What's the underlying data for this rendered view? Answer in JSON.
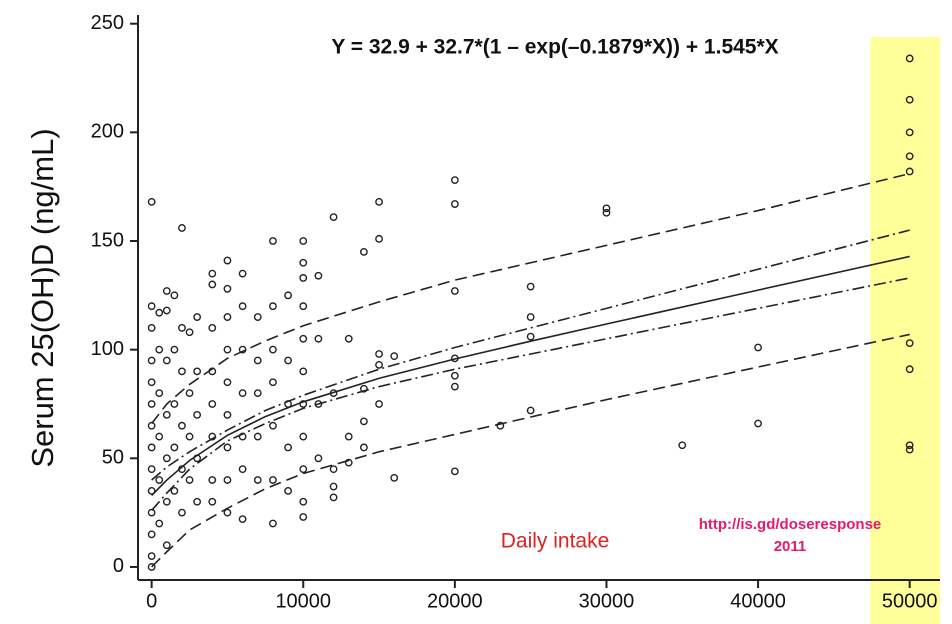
{
  "chart_data": {
    "type": "scatter",
    "y_label": "Serum 25(OH)D (ng/mL)",
    "annotation": "Y = 32.9 + 32.7*(1 – exp(–0.1879*X)) + 1.545*X",
    "x_note": "Daily intake",
    "source": "http://is.gd/doseresponse",
    "source_year": "2011",
    "xlim": [
      -900,
      52000
    ],
    "ylim": [
      -6,
      254
    ],
    "xticks": [
      0,
      10000,
      20000,
      30000,
      40000,
      50000
    ],
    "yticks": [
      0,
      50,
      100,
      150,
      200,
      250
    ],
    "grid": false,
    "color": "#222222",
    "highlight": {
      "x": [
        47400,
        52000
      ],
      "color": "#ffff99"
    },
    "x": [
      0,
      0,
      0,
      0,
      0,
      0,
      0,
      0,
      0,
      0,
      0,
      0,
      0,
      0,
      500,
      500,
      500,
      500,
      500,
      500,
      1000,
      1000,
      1000,
      1000,
      1000,
      1000,
      1000,
      1500,
      1500,
      1500,
      1500,
      1500,
      2000,
      2000,
      2000,
      2000,
      2000,
      2000,
      2500,
      2500,
      2500,
      2500,
      3000,
      3000,
      3000,
      3000,
      3000,
      4000,
      4000,
      4000,
      4000,
      4000,
      4000,
      4000,
      4000,
      5000,
      5000,
      5000,
      5000,
      5000,
      5000,
      5000,
      5000,
      5000,
      6000,
      6000,
      6000,
      6000,
      6000,
      6000,
      6000,
      7000,
      7000,
      7000,
      7000,
      7000,
      8000,
      8000,
      8000,
      8000,
      8000,
      8000,
      8000,
      9000,
      9000,
      9000,
      9000,
      9000,
      10000,
      10000,
      10000,
      10000,
      10000,
      10000,
      10000,
      10000,
      10000,
      10000,
      10000,
      11000,
      11000,
      11000,
      11000,
      12000,
      12000,
      12000,
      12000,
      12000,
      13000,
      13000,
      13000,
      14000,
      14000,
      14000,
      14000,
      15000,
      15000,
      15000,
      15000,
      15000,
      16000,
      16000,
      20000,
      20000,
      20000,
      20000,
      20000,
      20000,
      20000,
      23000,
      25000,
      25000,
      25000,
      25000,
      30000,
      30000,
      35000,
      40000,
      40000,
      50000,
      50000,
      50000,
      50000,
      50000,
      50000,
      50000,
      50000,
      50000
    ],
    "values": [
      168,
      120,
      110,
      95,
      85,
      75,
      65,
      55,
      45,
      35,
      25,
      15,
      5,
      0,
      117,
      100,
      80,
      60,
      40,
      20,
      127,
      118,
      95,
      70,
      50,
      30,
      10,
      125,
      100,
      75,
      55,
      35,
      156,
      110,
      90,
      65,
      45,
      25,
      108,
      80,
      60,
      40,
      115,
      90,
      70,
      50,
      30,
      135,
      130,
      110,
      90,
      75,
      60,
      40,
      30,
      141,
      128,
      115,
      100,
      85,
      70,
      55,
      40,
      25,
      135,
      120,
      100,
      80,
      60,
      45,
      22,
      115,
      95,
      80,
      60,
      40,
      150,
      120,
      100,
      85,
      65,
      40,
      20,
      125,
      95,
      75,
      55,
      35,
      150,
      140,
      133,
      120,
      105,
      90,
      75,
      60,
      45,
      30,
      23,
      134,
      105,
      75,
      50,
      161,
      80,
      45,
      32,
      37,
      105,
      60,
      48,
      145,
      82,
      67,
      55,
      168,
      151,
      98,
      93,
      75,
      97,
      41,
      178,
      167,
      127,
      96,
      88,
      83,
      44,
      65,
      129,
      115,
      106,
      72,
      165,
      163,
      56,
      101,
      66,
      234,
      215,
      200,
      189,
      182,
      103,
      91,
      56,
      54
    ],
    "lines": [
      {
        "style": "solid",
        "x": [
          0,
          1000,
          2500,
          5000,
          7500,
          10000,
          15000,
          20000,
          25000,
          30000,
          40000,
          50000
        ],
        "values": [
          32.9,
          40.0,
          49.0,
          60.6,
          69.2,
          76.0,
          86.8,
          95.7,
          103.9,
          111.8,
          127.4,
          142.9
        ]
      },
      {
        "style": "dashdot",
        "x": [
          0,
          1000,
          2500,
          5000,
          7500,
          10000,
          15000,
          20000,
          25000,
          30000,
          40000,
          50000
        ],
        "values": [
          40,
          46,
          53,
          63,
          72,
          79,
          91,
          101,
          110,
          119,
          137,
          155
        ]
      },
      {
        "style": "dashdot",
        "x": [
          0,
          1000,
          2500,
          5000,
          7500,
          10000,
          15000,
          20000,
          25000,
          30000,
          40000,
          50000
        ],
        "values": [
          26,
          34,
          45,
          58,
          66,
          73,
          83,
          91,
          98,
          105,
          119,
          133
        ]
      },
      {
        "style": "dashed",
        "x": [
          0,
          1000,
          2500,
          5000,
          7500,
          10000,
          15000,
          20000,
          25000,
          30000,
          40000,
          50000
        ],
        "values": [
          66,
          75,
          84,
          96,
          104,
          111,
          122,
          132,
          140,
          148,
          164,
          181
        ]
      },
      {
        "style": "dashed",
        "x": [
          0,
          1000,
          2500,
          5000,
          7500,
          10000,
          15000,
          20000,
          25000,
          30000,
          40000,
          50000
        ],
        "values": [
          0,
          7,
          17,
          27,
          36,
          43,
          53,
          61,
          69,
          77,
          92,
          107
        ]
      }
    ]
  }
}
